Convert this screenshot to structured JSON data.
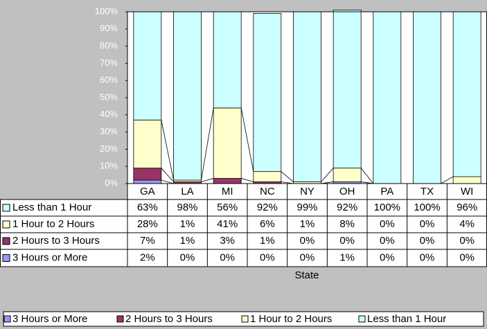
{
  "chart_data": {
    "type": "bar",
    "stacked": true,
    "x_label": "State",
    "categories": [
      "GA",
      "LA",
      "MI",
      "NC",
      "NY",
      "OH",
      "PA",
      "TX",
      "WI"
    ],
    "ylim": [
      0,
      100
    ],
    "yticks": [
      {
        "value": 0,
        "label": "0%"
      },
      {
        "value": 10,
        "label": "10%"
      },
      {
        "value": 20,
        "label": "20%"
      },
      {
        "value": 30,
        "label": "30%"
      },
      {
        "value": 40,
        "label": "40%"
      },
      {
        "value": 50,
        "label": "50%"
      },
      {
        "value": 60,
        "label": "60%"
      },
      {
        "value": 70,
        "label": "70%"
      },
      {
        "value": 80,
        "label": "80%"
      },
      {
        "value": 90,
        "label": "90%"
      },
      {
        "value": 100,
        "label": "100%"
      }
    ],
    "series": [
      {
        "name": "3 Hours or More",
        "color": "#9999ff",
        "values": [
          2,
          0,
          0,
          0,
          0,
          1,
          0,
          0,
          0
        ],
        "value_labels": [
          "2%",
          "0%",
          "0%",
          "0%",
          "0%",
          "1%",
          "0%",
          "0%",
          "0%"
        ]
      },
      {
        "name": "2 Hours to 3 Hours",
        "color": "#993366",
        "values": [
          7,
          1,
          3,
          1,
          0,
          0,
          0,
          0,
          0
        ],
        "value_labels": [
          "7%",
          "1%",
          "3%",
          "1%",
          "0%",
          "0%",
          "0%",
          "0%",
          "0%"
        ]
      },
      {
        "name": "1 Hour to 2 Hours",
        "color": "#ffffcc",
        "values": [
          28,
          1,
          41,
          6,
          1,
          8,
          0,
          0,
          4
        ],
        "value_labels": [
          "28%",
          "1%",
          "41%",
          "6%",
          "1%",
          "8%",
          "0%",
          "0%",
          "4%"
        ]
      },
      {
        "name": "Less than 1 Hour",
        "color": "#ccffff",
        "values": [
          63,
          98,
          56,
          92,
          99,
          92,
          100,
          100,
          96
        ],
        "value_labels": [
          "63%",
          "98%",
          "56%",
          "92%",
          "99%",
          "92%",
          "100%",
          "100%",
          "96%"
        ]
      }
    ]
  }
}
